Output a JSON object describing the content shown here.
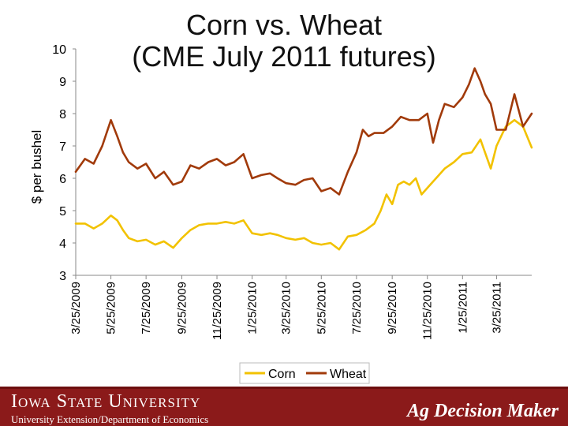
{
  "chart_data": {
    "type": "line",
    "title_line1": "Corn vs. Wheat",
    "title_line2": "(CME July 2011 futures)",
    "xlabel": "",
    "ylabel": "$ per bushel",
    "ylim": [
      3,
      10
    ],
    "yticks": [
      3,
      4,
      5,
      6,
      7,
      8,
      9,
      10
    ],
    "x_start": "2009-03-25",
    "x_end": "2011-05-25",
    "xtick_labels": [
      "3/25/2009",
      "5/25/2009",
      "7/25/2009",
      "9/25/2009",
      "11/25/2009",
      "1/25/2010",
      "3/25/2010",
      "5/25/2010",
      "7/25/2010",
      "9/25/2010",
      "11/25/2010",
      "1/25/2011",
      "3/25/2011"
    ],
    "xtick_dates": [
      "2009-03-25",
      "2009-05-25",
      "2009-07-25",
      "2009-09-25",
      "2009-11-25",
      "2010-01-25",
      "2010-03-25",
      "2010-05-25",
      "2010-07-25",
      "2010-09-25",
      "2010-11-25",
      "2011-01-25",
      "2011-03-25"
    ],
    "legend_position": "bottom",
    "grid": false,
    "series": [
      {
        "name": "Corn",
        "color": "#f2c200",
        "x": [
          "2009-03-25",
          "2009-04-10",
          "2009-04-25",
          "2009-05-10",
          "2009-05-25",
          "2009-06-05",
          "2009-06-15",
          "2009-06-25",
          "2009-07-10",
          "2009-07-25",
          "2009-08-10",
          "2009-08-25",
          "2009-09-10",
          "2009-09-25",
          "2009-10-10",
          "2009-10-25",
          "2009-11-10",
          "2009-11-25",
          "2009-12-10",
          "2009-12-25",
          "2010-01-10",
          "2010-01-25",
          "2010-02-10",
          "2010-02-25",
          "2010-03-10",
          "2010-03-25",
          "2010-04-10",
          "2010-04-25",
          "2010-05-10",
          "2010-05-25",
          "2010-06-10",
          "2010-06-25",
          "2010-07-10",
          "2010-07-25",
          "2010-08-10",
          "2010-08-25",
          "2010-09-05",
          "2010-09-15",
          "2010-09-25",
          "2010-10-05",
          "2010-10-15",
          "2010-10-25",
          "2010-11-05",
          "2010-11-15",
          "2010-11-25",
          "2010-12-10",
          "2010-12-25",
          "2011-01-10",
          "2011-01-25",
          "2011-02-10",
          "2011-02-25",
          "2011-03-05",
          "2011-03-15",
          "2011-03-25",
          "2011-04-10",
          "2011-04-25",
          "2011-05-10",
          "2011-05-25"
        ],
        "values": [
          4.6,
          4.6,
          4.45,
          4.6,
          4.85,
          4.7,
          4.4,
          4.15,
          4.05,
          4.1,
          3.95,
          4.05,
          3.85,
          4.15,
          4.4,
          4.55,
          4.6,
          4.6,
          4.65,
          4.6,
          4.7,
          4.3,
          4.25,
          4.3,
          4.25,
          4.15,
          4.1,
          4.15,
          4.0,
          3.95,
          4.0,
          3.8,
          4.2,
          4.25,
          4.4,
          4.6,
          5.0,
          5.5,
          5.2,
          5.8,
          5.9,
          5.8,
          6.0,
          5.5,
          5.7,
          6.0,
          6.3,
          6.5,
          6.75,
          6.8,
          7.2,
          6.8,
          6.3,
          7.0,
          7.6,
          7.8,
          7.6,
          6.95
        ]
      },
      {
        "name": "Wheat",
        "color": "#a13a0a",
        "x": [
          "2009-03-25",
          "2009-04-10",
          "2009-04-25",
          "2009-05-10",
          "2009-05-25",
          "2009-06-05",
          "2009-06-15",
          "2009-06-25",
          "2009-07-10",
          "2009-07-25",
          "2009-08-10",
          "2009-08-25",
          "2009-09-10",
          "2009-09-25",
          "2009-10-10",
          "2009-10-25",
          "2009-11-10",
          "2009-11-25",
          "2009-12-10",
          "2009-12-25",
          "2010-01-10",
          "2010-01-25",
          "2010-02-10",
          "2010-02-25",
          "2010-03-10",
          "2010-03-25",
          "2010-04-10",
          "2010-04-25",
          "2010-05-10",
          "2010-05-25",
          "2010-06-10",
          "2010-06-25",
          "2010-07-10",
          "2010-07-25",
          "2010-08-05",
          "2010-08-15",
          "2010-08-25",
          "2010-09-10",
          "2010-09-25",
          "2010-10-10",
          "2010-10-25",
          "2010-11-10",
          "2010-11-25",
          "2010-12-05",
          "2010-12-15",
          "2010-12-25",
          "2011-01-10",
          "2011-01-25",
          "2011-02-05",
          "2011-02-15",
          "2011-02-25",
          "2011-03-05",
          "2011-03-15",
          "2011-03-25",
          "2011-04-10",
          "2011-04-25",
          "2011-05-10",
          "2011-05-25"
        ],
        "values": [
          6.2,
          6.6,
          6.45,
          7.0,
          7.8,
          7.3,
          6.8,
          6.5,
          6.3,
          6.45,
          6.0,
          6.2,
          5.8,
          5.9,
          6.4,
          6.3,
          6.5,
          6.6,
          6.4,
          6.5,
          6.75,
          6.0,
          6.1,
          6.15,
          6.0,
          5.85,
          5.8,
          5.95,
          6.0,
          5.6,
          5.7,
          5.5,
          6.2,
          6.8,
          7.5,
          7.3,
          7.4,
          7.4,
          7.6,
          7.9,
          7.8,
          7.8,
          8.0,
          7.1,
          7.8,
          8.3,
          8.2,
          8.5,
          8.9,
          9.4,
          9.0,
          8.6,
          8.3,
          7.5,
          7.5,
          8.6,
          7.6,
          8.0
        ]
      }
    ]
  },
  "footer": {
    "university": "Iowa State University",
    "department": "University Extension/Department of Economics",
    "brand": "Ag Decision Maker"
  }
}
